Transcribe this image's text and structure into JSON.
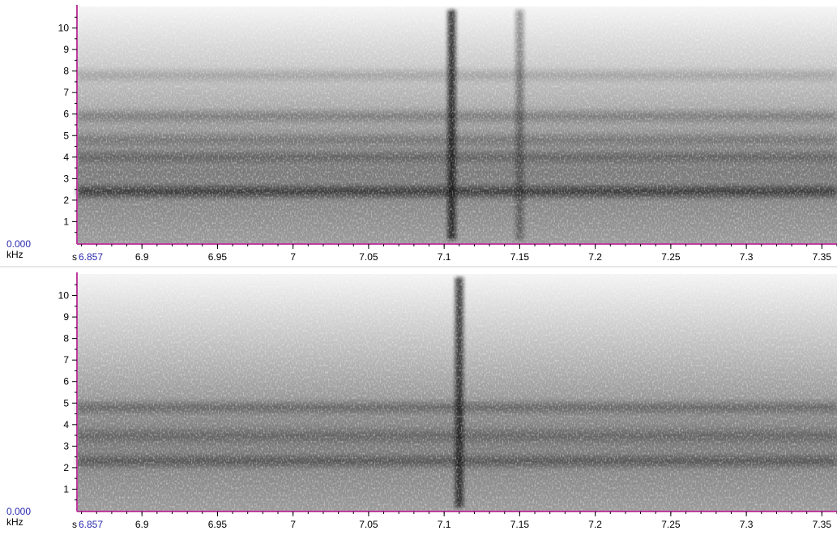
{
  "chart_data": [
    {
      "type": "heatmap",
      "channel": "top",
      "xlabel": "s",
      "ylabel": "kHz",
      "origin_label": "0.000",
      "start_label": "6.857",
      "xlim": [
        6.857,
        7.36
      ],
      "ylim": [
        0,
        11
      ],
      "x_ticks": [
        {
          "value": 6.9,
          "label": "6.9"
        },
        {
          "value": 6.95,
          "label": "6.95"
        },
        {
          "value": 7.0,
          "label": "7"
        },
        {
          "value": 7.05,
          "label": "7.05"
        },
        {
          "value": 7.1,
          "label": "7.1"
        },
        {
          "value": 7.15,
          "label": "7.15"
        },
        {
          "value": 7.2,
          "label": "7.2"
        },
        {
          "value": 7.25,
          "label": "7.25"
        },
        {
          "value": 7.3,
          "label": "7.3"
        },
        {
          "value": 7.35,
          "label": "7.35"
        }
      ],
      "y_ticks": [
        {
          "value": 1,
          "label": "1"
        },
        {
          "value": 2,
          "label": "2"
        },
        {
          "value": 3,
          "label": "3"
        },
        {
          "value": 4,
          "label": "4"
        },
        {
          "value": 5,
          "label": "5"
        },
        {
          "value": 6,
          "label": "6"
        },
        {
          "value": 7,
          "label": "7"
        },
        {
          "value": 8,
          "label": "8"
        },
        {
          "value": 9,
          "label": "9"
        },
        {
          "value": 10,
          "label": "10"
        }
      ],
      "bands": [
        {
          "freq_khz": 2.4,
          "intensity": 0.95
        },
        {
          "freq_khz": 4.0,
          "intensity": 0.45
        },
        {
          "freq_khz": 4.8,
          "intensity": 0.35
        },
        {
          "freq_khz": 5.9,
          "intensity": 0.4
        },
        {
          "freq_khz": 7.8,
          "intensity": 0.25
        }
      ],
      "transients": [
        {
          "time_s": 7.105,
          "intensity": 0.95
        },
        {
          "time_s": 7.15,
          "intensity": 0.45
        }
      ]
    },
    {
      "type": "heatmap",
      "channel": "bottom",
      "xlabel": "s",
      "ylabel": "kHz",
      "origin_label": "0.000",
      "start_label": "6.857",
      "xlim": [
        6.857,
        7.36
      ],
      "ylim": [
        0,
        11
      ],
      "x_ticks": [
        {
          "value": 6.9,
          "label": "6.9"
        },
        {
          "value": 6.95,
          "label": "6.95"
        },
        {
          "value": 7.0,
          "label": "7"
        },
        {
          "value": 7.05,
          "label": "7.05"
        },
        {
          "value": 7.1,
          "label": "7.1"
        },
        {
          "value": 7.15,
          "label": "7.15"
        },
        {
          "value": 7.2,
          "label": "7.2"
        },
        {
          "value": 7.25,
          "label": "7.25"
        },
        {
          "value": 7.3,
          "label": "7.3"
        },
        {
          "value": 7.35,
          "label": "7.35"
        }
      ],
      "y_ticks": [
        {
          "value": 1,
          "label": "1"
        },
        {
          "value": 2,
          "label": "2"
        },
        {
          "value": 3,
          "label": "3"
        },
        {
          "value": 4,
          "label": "4"
        },
        {
          "value": 5,
          "label": "5"
        },
        {
          "value": 6,
          "label": "6"
        },
        {
          "value": 7,
          "label": "7"
        },
        {
          "value": 8,
          "label": "8"
        },
        {
          "value": 9,
          "label": "9"
        },
        {
          "value": 10,
          "label": "10"
        }
      ],
      "bands": [
        {
          "freq_khz": 2.3,
          "intensity": 0.6
        },
        {
          "freq_khz": 3.5,
          "intensity": 0.35
        },
        {
          "freq_khz": 4.8,
          "intensity": 0.5
        }
      ],
      "transients": [
        {
          "time_s": 7.11,
          "intensity": 0.9
        }
      ]
    }
  ],
  "colors": {
    "axis": "#c03ca0",
    "origin_text": "#2a2ab0",
    "spectro_light": "#f4f4f4",
    "spectro_dark": "#101010"
  }
}
